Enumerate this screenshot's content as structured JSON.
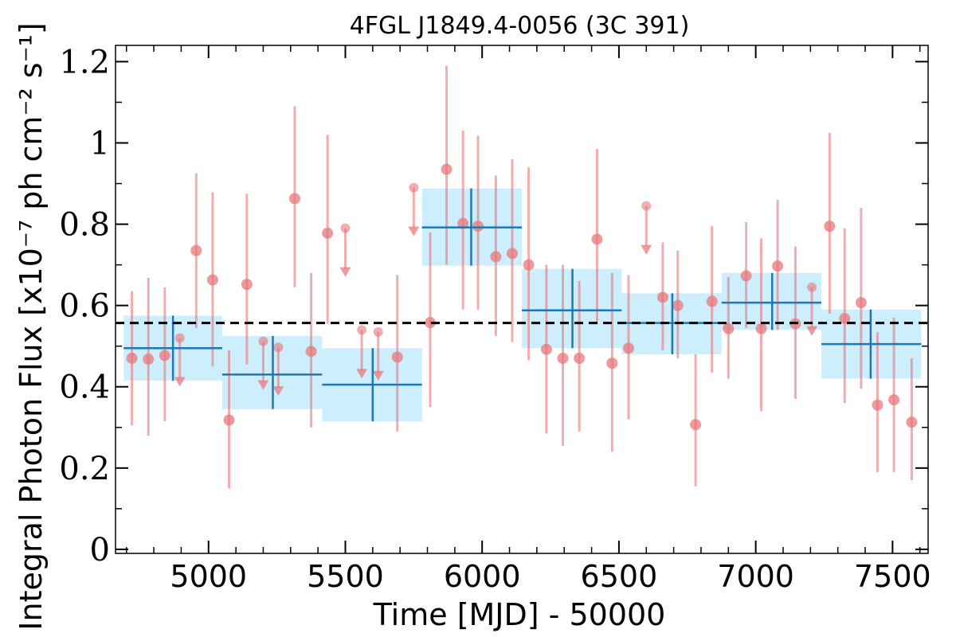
{
  "chart_data": {
    "type": "scatter",
    "title": "4FGL J1849.4-0056 (3C 391)",
    "xlabel": "Time [MJD] - 50000",
    "ylabel": "Integral Photon Flux [x10⁻⁷ ph cm⁻² s⁻¹]",
    "xlim": [
      4660,
      7630
    ],
    "ylim": [
      -0.01,
      1.24
    ],
    "xticks": [
      5000,
      5500,
      6000,
      6500,
      7000,
      7500
    ],
    "xtick_labels": [
      "5000",
      "5500",
      "6000",
      "6500",
      "7000",
      "7500"
    ],
    "yticks": [
      0,
      0.2,
      0.4,
      0.6,
      0.8,
      1.0,
      1.2
    ],
    "ytick_labels": [
      "0",
      "0.2",
      "0.4",
      "0.6",
      "0.8",
      "1",
      "1.2"
    ],
    "mean_flux": 0.557,
    "colors": {
      "points": "#e8777a",
      "bins_fill": "#cdeefc",
      "bins_line": "#1f77b4",
      "mean_line": "#000000"
    },
    "bins": [
      {
        "x_start": 4690,
        "x_end": 5050,
        "x_center": 4870,
        "y": 0.495,
        "y_err": [
          0.415,
          0.575
        ]
      },
      {
        "x_start": 5050,
        "x_end": 5415,
        "x_center": 5235,
        "y": 0.43,
        "y_err": [
          0.345,
          0.525
        ]
      },
      {
        "x_start": 5415,
        "x_end": 5780,
        "x_center": 5600,
        "y": 0.405,
        "y_err": [
          0.315,
          0.495
        ]
      },
      {
        "x_start": 5780,
        "x_end": 6145,
        "x_center": 5960,
        "y": 0.792,
        "y_err": [
          0.698,
          0.888
        ]
      },
      {
        "x_start": 6145,
        "x_end": 6510,
        "x_center": 6330,
        "y": 0.588,
        "y_err": [
          0.495,
          0.69
        ]
      },
      {
        "x_start": 6510,
        "x_end": 6875,
        "x_center": 6695,
        "y": 0.557,
        "y_err": [
          0.48,
          0.63
        ]
      },
      {
        "x_start": 6875,
        "x_end": 7240,
        "x_center": 7060,
        "y": 0.607,
        "y_err": [
          0.54,
          0.68
        ]
      },
      {
        "x_start": 7240,
        "x_end": 7605,
        "x_center": 7420,
        "y": 0.505,
        "y_err": [
          0.42,
          0.59
        ]
      }
    ],
    "points": [
      {
        "x": 4720,
        "y": 0.47,
        "y_err": [
          0.305,
          0.635
        ]
      },
      {
        "x": 4780,
        "y": 0.468,
        "y_err": [
          0.28,
          0.668
        ]
      },
      {
        "x": 4840,
        "y": 0.477,
        "y_err": [
          0.315,
          0.645
        ]
      },
      {
        "x": 4955,
        "y": 0.735,
        "y_err": [
          0.545,
          0.925
        ]
      },
      {
        "x": 5015,
        "y": 0.663,
        "y_err": [
          0.45,
          0.878
        ]
      },
      {
        "x": 5075,
        "y": 0.318,
        "y_err": [
          0.15,
          0.49
        ]
      },
      {
        "x": 5140,
        "y": 0.652,
        "y_err": [
          0.455,
          0.875
        ]
      },
      {
        "x": 5315,
        "y": 0.863,
        "y_err": [
          0.645,
          1.09
        ]
      },
      {
        "x": 5375,
        "y": 0.487,
        "y_err": [
          0.3,
          0.68
        ]
      },
      {
        "x": 5435,
        "y": 0.778,
        "y_err": [
          0.555,
          1.02
        ]
      },
      {
        "x": 5690,
        "y": 0.473,
        "y_err": [
          0.29,
          0.675
        ]
      },
      {
        "x": 5810,
        "y": 0.558,
        "y_err": [
          0.35,
          0.78
        ]
      },
      {
        "x": 5870,
        "y": 0.935,
        "y_err": [
          0.7,
          1.19
        ]
      },
      {
        "x": 5930,
        "y": 0.802,
        "y_err": [
          0.59,
          1.03
        ]
      },
      {
        "x": 5985,
        "y": 0.795,
        "y_err": [
          0.59,
          1.018
        ]
      },
      {
        "x": 6050,
        "y": 0.72,
        "y_err": [
          0.525,
          0.92
        ]
      },
      {
        "x": 6110,
        "y": 0.728,
        "y_err": [
          0.51,
          0.96
        ]
      },
      {
        "x": 6170,
        "y": 0.7,
        "y_err": [
          0.465,
          0.94
        ]
      },
      {
        "x": 6235,
        "y": 0.492,
        "y_err": [
          0.285,
          0.7
        ]
      },
      {
        "x": 6295,
        "y": 0.47,
        "y_err": [
          0.255,
          0.7
        ]
      },
      {
        "x": 6355,
        "y": 0.47,
        "y_err": [
          0.29,
          0.66
        ]
      },
      {
        "x": 6420,
        "y": 0.763,
        "y_err": [
          0.56,
          0.985
        ]
      },
      {
        "x": 6475,
        "y": 0.458,
        "y_err": [
          0.24,
          0.68
        ]
      },
      {
        "x": 6535,
        "y": 0.495,
        "y_err": [
          0.32,
          0.675
        ]
      },
      {
        "x": 6660,
        "y": 0.62,
        "y_err": [
          0.49,
          0.755
        ]
      },
      {
        "x": 6715,
        "y": 0.6,
        "y_err": [
          0.47,
          0.735
        ]
      },
      {
        "x": 6780,
        "y": 0.307,
        "y_err": [
          0.155,
          0.48
        ]
      },
      {
        "x": 6840,
        "y": 0.61,
        "y_err": [
          0.435,
          0.795
        ]
      },
      {
        "x": 6900,
        "y": 0.543,
        "y_err": [
          0.42,
          0.67
        ]
      },
      {
        "x": 6965,
        "y": 0.673,
        "y_err": [
          0.545,
          0.805
        ]
      },
      {
        "x": 7020,
        "y": 0.543,
        "y_err": [
          0.34,
          0.765
        ]
      },
      {
        "x": 7080,
        "y": 0.697,
        "y_err": [
          0.54,
          0.86
        ]
      },
      {
        "x": 7145,
        "y": 0.555,
        "y_err": [
          0.37,
          0.745
        ]
      },
      {
        "x": 7270,
        "y": 0.795,
        "y_err": [
          0.58,
          1.025
        ]
      },
      {
        "x": 7325,
        "y": 0.568,
        "y_err": [
          0.36,
          0.79
        ]
      },
      {
        "x": 7385,
        "y": 0.607,
        "y_err": [
          0.395,
          0.84
        ]
      },
      {
        "x": 7445,
        "y": 0.355,
        "y_err": [
          0.19,
          0.535
        ]
      },
      {
        "x": 7505,
        "y": 0.368,
        "y_err": [
          0.19,
          0.57
        ]
      },
      {
        "x": 7570,
        "y": 0.313,
        "y_err": [
          0.17,
          0.47
        ]
      }
    ],
    "upper_limits": [
      {
        "x": 4895,
        "y": 0.52
      },
      {
        "x": 5200,
        "y": 0.512
      },
      {
        "x": 5255,
        "y": 0.497
      },
      {
        "x": 5500,
        "y": 0.79
      },
      {
        "x": 5560,
        "y": 0.54
      },
      {
        "x": 5620,
        "y": 0.535
      },
      {
        "x": 5750,
        "y": 0.89
      },
      {
        "x": 6600,
        "y": 0.845
      },
      {
        "x": 7205,
        "y": 0.645
      }
    ]
  }
}
